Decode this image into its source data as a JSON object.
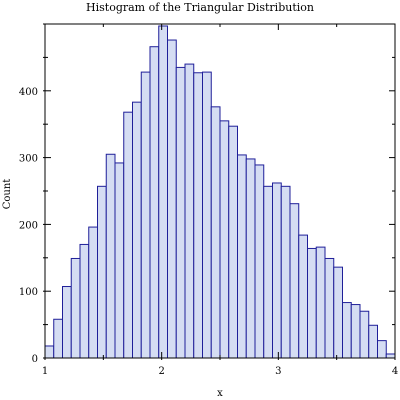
{
  "chart_data": {
    "type": "bar",
    "title": "Histogram of the Triangular Distribution",
    "xlabel": "x",
    "ylabel": "Count",
    "xlim": [
      1,
      4
    ],
    "ylim": [
      0,
      500
    ],
    "xticks": [
      1,
      2,
      3,
      4
    ],
    "yticks": [
      0,
      100,
      200,
      300,
      400
    ],
    "bin_width": 0.075,
    "bins": [
      {
        "x0": 1.0,
        "x1": 1.075,
        "count": 18
      },
      {
        "x0": 1.075,
        "x1": 1.15,
        "count": 58
      },
      {
        "x0": 1.15,
        "x1": 1.225,
        "count": 107
      },
      {
        "x0": 1.225,
        "x1": 1.3,
        "count": 149
      },
      {
        "x0": 1.3,
        "x1": 1.375,
        "count": 170
      },
      {
        "x0": 1.375,
        "x1": 1.45,
        "count": 196
      },
      {
        "x0": 1.45,
        "x1": 1.525,
        "count": 257
      },
      {
        "x0": 1.525,
        "x1": 1.6,
        "count": 305
      },
      {
        "x0": 1.6,
        "x1": 1.675,
        "count": 292
      },
      {
        "x0": 1.675,
        "x1": 1.75,
        "count": 368
      },
      {
        "x0": 1.75,
        "x1": 1.825,
        "count": 383
      },
      {
        "x0": 1.825,
        "x1": 1.9,
        "count": 428
      },
      {
        "x0": 1.9,
        "x1": 1.975,
        "count": 466
      },
      {
        "x0": 1.975,
        "x1": 2.05,
        "count": 497
      },
      {
        "x0": 2.05,
        "x1": 2.125,
        "count": 476
      },
      {
        "x0": 2.125,
        "x1": 2.2,
        "count": 435
      },
      {
        "x0": 2.2,
        "x1": 2.275,
        "count": 440
      },
      {
        "x0": 2.275,
        "x1": 2.35,
        "count": 427
      },
      {
        "x0": 2.35,
        "x1": 2.425,
        "count": 428
      },
      {
        "x0": 2.425,
        "x1": 2.5,
        "count": 376
      },
      {
        "x0": 2.5,
        "x1": 2.575,
        "count": 355
      },
      {
        "x0": 2.575,
        "x1": 2.65,
        "count": 347
      },
      {
        "x0": 2.65,
        "x1": 2.725,
        "count": 304
      },
      {
        "x0": 2.725,
        "x1": 2.8,
        "count": 298
      },
      {
        "x0": 2.8,
        "x1": 2.875,
        "count": 289
      },
      {
        "x0": 2.875,
        "x1": 2.95,
        "count": 257
      },
      {
        "x0": 2.95,
        "x1": 3.025,
        "count": 262
      },
      {
        "x0": 3.025,
        "x1": 3.1,
        "count": 257
      },
      {
        "x0": 3.1,
        "x1": 3.175,
        "count": 231
      },
      {
        "x0": 3.175,
        "x1": 3.25,
        "count": 184
      },
      {
        "x0": 3.25,
        "x1": 3.325,
        "count": 164
      },
      {
        "x0": 3.325,
        "x1": 3.4,
        "count": 166
      },
      {
        "x0": 3.4,
        "x1": 3.475,
        "count": 149
      },
      {
        "x0": 3.475,
        "x1": 3.55,
        "count": 136
      },
      {
        "x0": 3.55,
        "x1": 3.625,
        "count": 83
      },
      {
        "x0": 3.625,
        "x1": 3.7,
        "count": 80
      },
      {
        "x0": 3.7,
        "x1": 3.775,
        "count": 70
      },
      {
        "x0": 3.775,
        "x1": 3.85,
        "count": 49
      },
      {
        "x0": 3.85,
        "x1": 3.925,
        "count": 26
      },
      {
        "x0": 3.925,
        "x1": 4.0,
        "count": 6
      }
    ],
    "grid": false,
    "legend": "none",
    "colors": {
      "bar_fill": "#d5ddf3",
      "bar_stroke": "#1f1f99"
    }
  }
}
